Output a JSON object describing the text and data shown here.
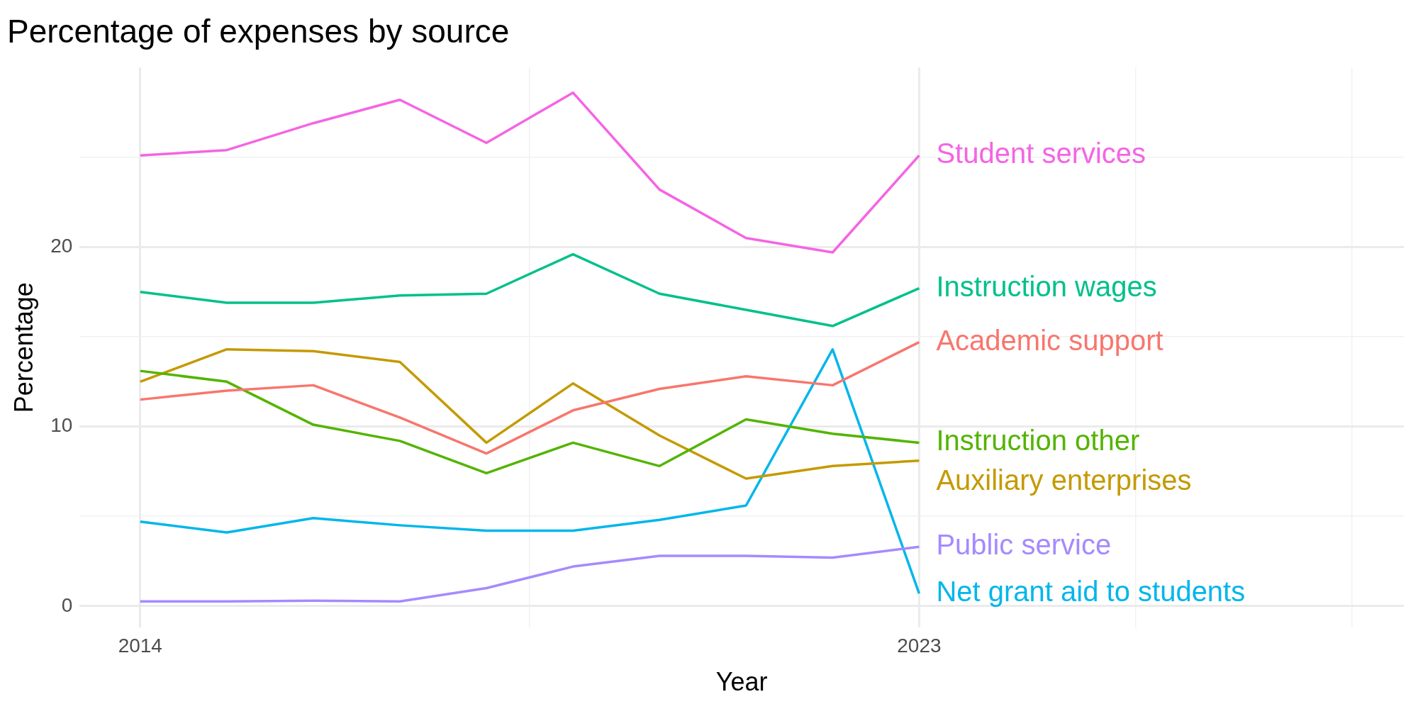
{
  "chart_data": {
    "type": "line",
    "title": "Percentage of expenses by source",
    "xlabel": "Year",
    "ylabel": "Percentage",
    "x": [
      2014,
      2015,
      2016,
      2017,
      2018,
      2019,
      2020,
      2021,
      2022,
      2023
    ],
    "xlim": [
      2013.3,
      2028.6
    ],
    "xticks": [
      2014,
      {
        "value": 2018.5,
        "label": null
      },
      2023,
      {
        "value": 2025.5,
        "label": null
      },
      {
        "value": 2028,
        "label": null
      }
    ],
    "ylim": [
      -1.2,
      30
    ],
    "yticks": [
      0,
      {
        "value": 5,
        "label": null
      },
      10,
      {
        "value": 15,
        "label": null
      },
      20,
      {
        "value": 25,
        "label": null
      }
    ],
    "grid": true,
    "legend": false,
    "marker": "none",
    "line_style": "solid",
    "series": [
      {
        "name": "Student services",
        "color": "#f564e3",
        "values": [
          25.1,
          25.4,
          26.9,
          28.2,
          25.8,
          28.6,
          23.2,
          20.5,
          19.7,
          25.1
        ]
      },
      {
        "name": "Instruction wages",
        "color": "#00c08b",
        "values": [
          17.5,
          16.9,
          16.9,
          17.3,
          17.4,
          19.6,
          17.4,
          16.5,
          15.6,
          17.7
        ]
      },
      {
        "name": "Academic support",
        "color": "#f8766d",
        "values": [
          11.5,
          12.0,
          12.3,
          10.5,
          8.5,
          10.9,
          12.1,
          12.8,
          12.3,
          14.7
        ]
      },
      {
        "name": "Instruction other",
        "color": "#53b400",
        "values": [
          13.1,
          12.5,
          10.1,
          9.2,
          7.4,
          9.1,
          7.8,
          10.4,
          9.6,
          9.1
        ]
      },
      {
        "name": "Auxiliary enterprises",
        "color": "#c49a00",
        "values": [
          12.5,
          14.3,
          14.2,
          13.6,
          9.1,
          12.4,
          9.5,
          7.1,
          7.8,
          8.1
        ]
      },
      {
        "name": "Public service",
        "color": "#a58aff",
        "values": [
          0.26,
          0.26,
          0.3,
          0.26,
          1.0,
          2.2,
          2.8,
          2.8,
          2.7,
          3.3
        ]
      },
      {
        "name": "Net grant aid to students",
        "color": "#00b6eb",
        "values": [
          4.7,
          4.1,
          4.9,
          4.5,
          4.2,
          4.2,
          4.8,
          5.6,
          14.3,
          0.7
        ]
      }
    ]
  }
}
